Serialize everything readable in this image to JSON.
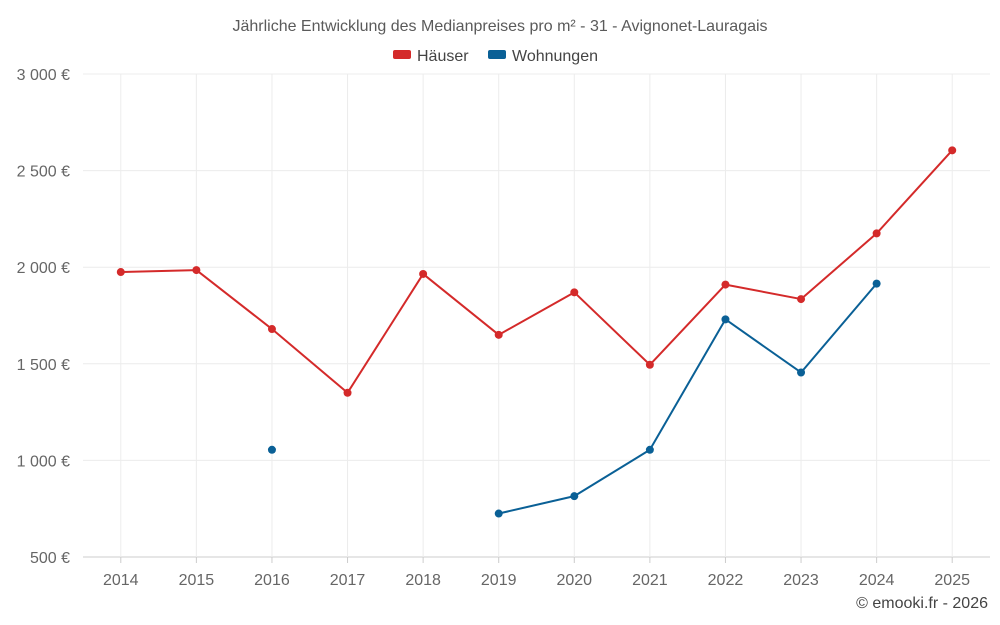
{
  "chart_data": {
    "type": "line",
    "title": "Jährliche Entwicklung des Medianpreises pro m² - 31 - Avignonet-Lauragais",
    "categories": [
      "2014",
      "2015",
      "2016",
      "2017",
      "2018",
      "2019",
      "2020",
      "2021",
      "2022",
      "2023",
      "2024",
      "2025"
    ],
    "y_ticks": [
      500,
      1000,
      1500,
      2000,
      2500,
      3000
    ],
    "y_tick_labels": [
      "500 €",
      "1 000 €",
      "1 500 €",
      "2 000 €",
      "2 500 €",
      "3 000 €"
    ],
    "ylim": [
      500,
      3000
    ],
    "grid": true,
    "legend_position": "top-center",
    "series": [
      {
        "name": "Häuser",
        "color": "#d42a2a",
        "values": [
          1975,
          1985,
          1680,
          1350,
          1965,
          1650,
          1870,
          1495,
          1910,
          1835,
          2175,
          2605
        ]
      },
      {
        "name": "Wohnungen",
        "color": "#0a6096",
        "values": [
          null,
          null,
          1055,
          null,
          null,
          725,
          815,
          1055,
          1730,
          1455,
          1915,
          null
        ]
      }
    ]
  },
  "credit": "© emooki.fr - 2026"
}
